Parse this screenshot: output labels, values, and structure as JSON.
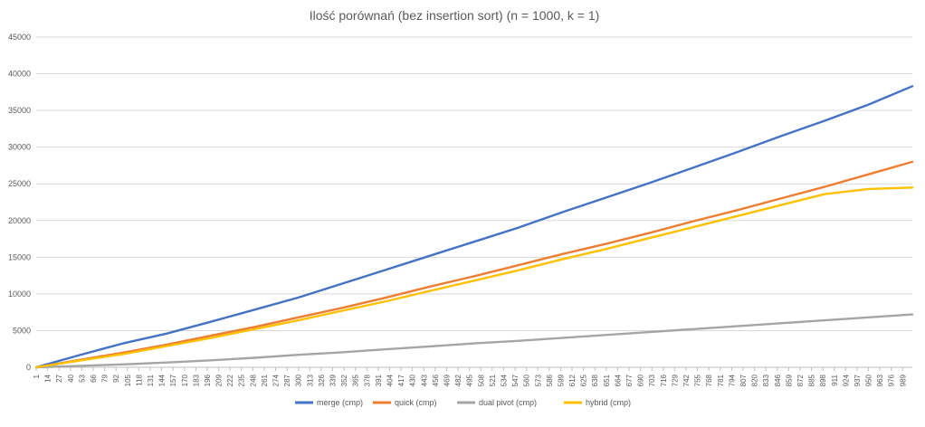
{
  "chart_data": {
    "type": "line",
    "title": "Ilość porównań (bez insertion sort) (n = 1000, k = 1)",
    "xlabel": "",
    "ylabel": "",
    "ylim": [
      0,
      45000
    ],
    "y_ticks": [
      0,
      5000,
      10000,
      15000,
      20000,
      25000,
      30000,
      35000,
      40000,
      45000
    ],
    "x_tick_labels": [
      1,
      14,
      27,
      40,
      53,
      66,
      79,
      92,
      105,
      118,
      131,
      144,
      157,
      170,
      183,
      196,
      209,
      222,
      235,
      248,
      261,
      274,
      287,
      300,
      313,
      326,
      339,
      352,
      365,
      378,
      391,
      404,
      417,
      430,
      443,
      456,
      469,
      482,
      495,
      508,
      521,
      534,
      547,
      560,
      573,
      586,
      599,
      612,
      625,
      638,
      651,
      664,
      677,
      690,
      703,
      716,
      729,
      742,
      755,
      768,
      781,
      794,
      807,
      820,
      833,
      846,
      859,
      872,
      885,
      898,
      911,
      924,
      937,
      950,
      963,
      976,
      989
    ],
    "grid": true,
    "legend_position": "bottom",
    "series": [
      {
        "name": "merge (cmp)",
        "color": "#4472C4",
        "x": [
          1,
          50,
          100,
          150,
          200,
          250,
          300,
          350,
          400,
          450,
          500,
          550,
          600,
          650,
          700,
          750,
          800,
          850,
          900,
          950,
          1000
        ],
        "values": [
          0,
          1650,
          3250,
          4600,
          6200,
          7850,
          9500,
          11400,
          13300,
          15200,
          17100,
          19000,
          21100,
          23100,
          25100,
          27200,
          29300,
          31500,
          33600,
          35800,
          38300
        ]
      },
      {
        "name": "quick (cmp)",
        "color": "#ED7D31",
        "x": [
          1,
          50,
          100,
          150,
          200,
          250,
          300,
          350,
          400,
          450,
          500,
          550,
          600,
          650,
          700,
          750,
          800,
          850,
          900,
          950,
          1000
        ],
        "values": [
          0,
          1000,
          2000,
          3100,
          4300,
          5500,
          6800,
          8100,
          9500,
          11000,
          12400,
          13900,
          15400,
          16800,
          18300,
          19900,
          21400,
          23000,
          24600,
          26300,
          28000
        ]
      },
      {
        "name": "dual pivot (cmp)",
        "color": "#A5A5A5",
        "x": [
          1,
          50,
          100,
          150,
          200,
          250,
          300,
          350,
          400,
          450,
          500,
          550,
          600,
          650,
          700,
          750,
          800,
          850,
          900,
          950,
          1000
        ],
        "values": [
          0,
          200,
          400,
          650,
          950,
          1300,
          1700,
          2050,
          2450,
          2850,
          3250,
          3600,
          4000,
          4400,
          4800,
          5200,
          5600,
          6000,
          6400,
          6800,
          7200
        ]
      },
      {
        "name": "hybrid (cmp)",
        "color": "#FFC000",
        "x": [
          1,
          50,
          100,
          150,
          200,
          250,
          300,
          350,
          400,
          450,
          500,
          550,
          600,
          650,
          700,
          750,
          800,
          850,
          900,
          950,
          1000
        ],
        "values": [
          0,
          900,
          1800,
          2900,
          4000,
          5200,
          6400,
          7700,
          9000,
          10400,
          11800,
          13200,
          14700,
          16100,
          17600,
          19100,
          20600,
          22100,
          23600,
          24300,
          24500
        ]
      }
    ]
  }
}
